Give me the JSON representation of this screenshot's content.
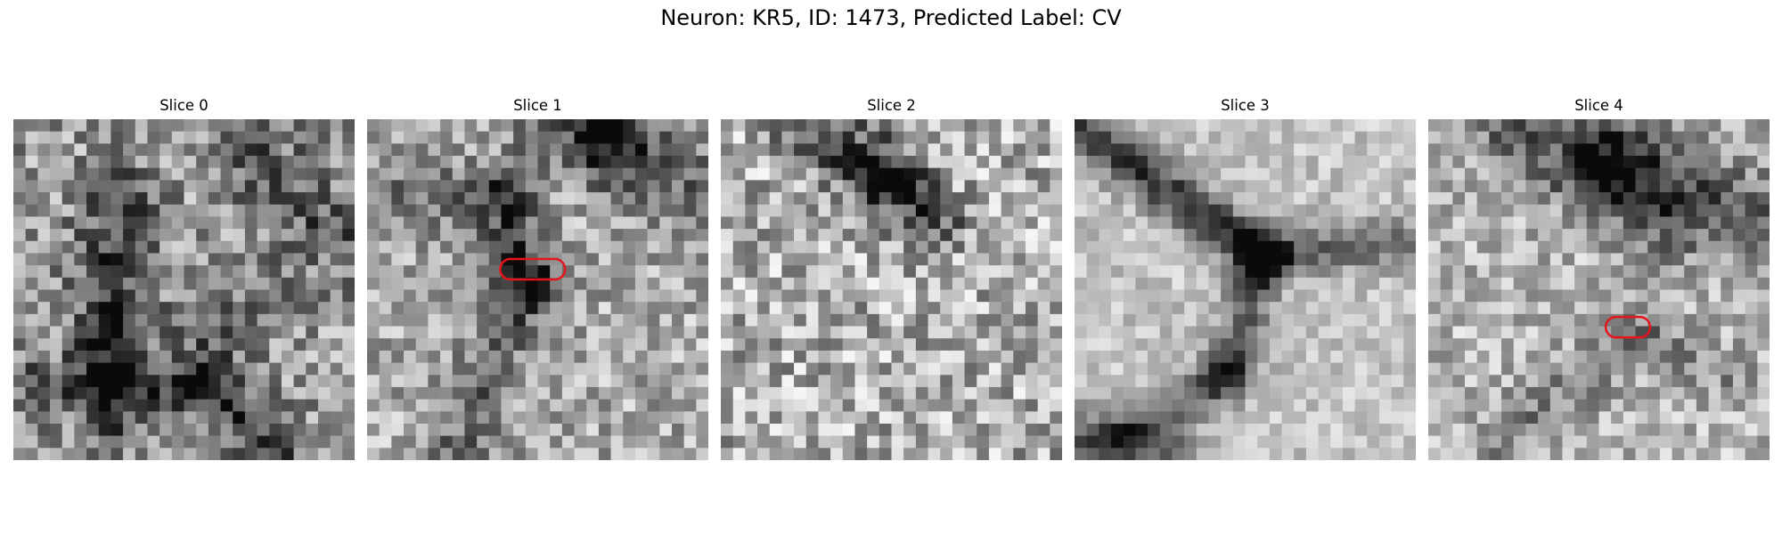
{
  "figure": {
    "title": "Neuron: KR5, ID: 1473, Predicted Label: CV"
  },
  "panels": [
    {
      "title": "Slice 0",
      "marker": false,
      "style": "s0"
    },
    {
      "title": "Slice 1",
      "marker": true,
      "style": "s1"
    },
    {
      "title": "Slice 2",
      "marker": false,
      "style": "s2"
    },
    {
      "title": "Slice 3",
      "marker": false,
      "style": "s3"
    },
    {
      "title": "Slice 4",
      "marker": true,
      "style": "s4"
    }
  ],
  "colors": {
    "marker": "#e8141c"
  }
}
